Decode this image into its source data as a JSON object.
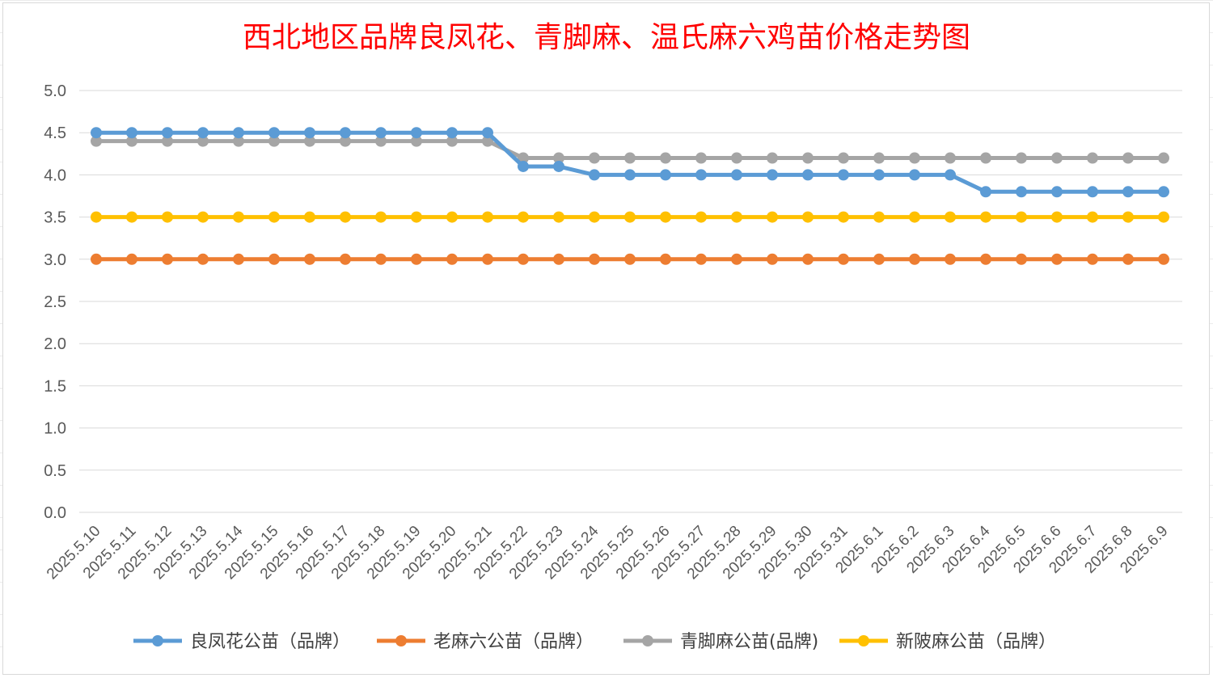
{
  "chart_data": {
    "type": "line",
    "title": "西北地区品牌良凤花、青脚麻、温氏麻六鸡苗价格走势图",
    "xlabel": "",
    "ylabel": "",
    "ylim": [
      0,
      5
    ],
    "yticks": [
      "0.0",
      "0.5",
      "1.0",
      "1.5",
      "2.0",
      "2.5",
      "3.0",
      "3.5",
      "4.0",
      "4.5",
      "5.0"
    ],
    "grid": true,
    "legend_position": "bottom",
    "categories": [
      "2025.5.10",
      "2025.5.11",
      "2025.5.12",
      "2025.5.13",
      "2025.5.14",
      "2025.5.15",
      "2025.5.16",
      "2025.5.17",
      "2025.5.18",
      "2025.5.19",
      "2025.5.20",
      "2025.5.21",
      "2025.5.22",
      "2025.5.23",
      "2025.5.24",
      "2025.5.25",
      "2025.5.26",
      "2025.5.27",
      "2025.5.28",
      "2025.5.29",
      "2025.5.30",
      "2025.5.31",
      "2025.6.1",
      "2025.6.2",
      "2025.6.3",
      "2025.6.4",
      "2025.6.5",
      "2025.6.6",
      "2025.6.7",
      "2025.6.8",
      "2025.6.9"
    ],
    "series": [
      {
        "name": "良凤花公苗（品牌）",
        "color": "#5b9bd5",
        "values": [
          4.5,
          4.5,
          4.5,
          4.5,
          4.5,
          4.5,
          4.5,
          4.5,
          4.5,
          4.5,
          4.5,
          4.5,
          4.1,
          4.1,
          4.0,
          4.0,
          4.0,
          4.0,
          4.0,
          4.0,
          4.0,
          4.0,
          4.0,
          4.0,
          4.0,
          3.8,
          3.8,
          3.8,
          3.8,
          3.8,
          3.8
        ]
      },
      {
        "name": "老麻六公苗（品牌）",
        "color": "#ed7d31",
        "values": [
          3.0,
          3.0,
          3.0,
          3.0,
          3.0,
          3.0,
          3.0,
          3.0,
          3.0,
          3.0,
          3.0,
          3.0,
          3.0,
          3.0,
          3.0,
          3.0,
          3.0,
          3.0,
          3.0,
          3.0,
          3.0,
          3.0,
          3.0,
          3.0,
          3.0,
          3.0,
          3.0,
          3.0,
          3.0,
          3.0,
          3.0
        ]
      },
      {
        "name": "青脚麻公苗(品牌)",
        "color": "#a5a5a5",
        "values": [
          4.4,
          4.4,
          4.4,
          4.4,
          4.4,
          4.4,
          4.4,
          4.4,
          4.4,
          4.4,
          4.4,
          4.4,
          4.2,
          4.2,
          4.2,
          4.2,
          4.2,
          4.2,
          4.2,
          4.2,
          4.2,
          4.2,
          4.2,
          4.2,
          4.2,
          4.2,
          4.2,
          4.2,
          4.2,
          4.2,
          4.2
        ]
      },
      {
        "name": "新陂麻公苗（品牌）",
        "color": "#ffc000",
        "values": [
          3.5,
          3.5,
          3.5,
          3.5,
          3.5,
          3.5,
          3.5,
          3.5,
          3.5,
          3.5,
          3.5,
          3.5,
          3.5,
          3.5,
          3.5,
          3.5,
          3.5,
          3.5,
          3.5,
          3.5,
          3.5,
          3.5,
          3.5,
          3.5,
          3.5,
          3.5,
          3.5,
          3.5,
          3.5,
          3.5,
          3.5
        ]
      }
    ],
    "draw_order": [
      2,
      0,
      3,
      1
    ]
  }
}
